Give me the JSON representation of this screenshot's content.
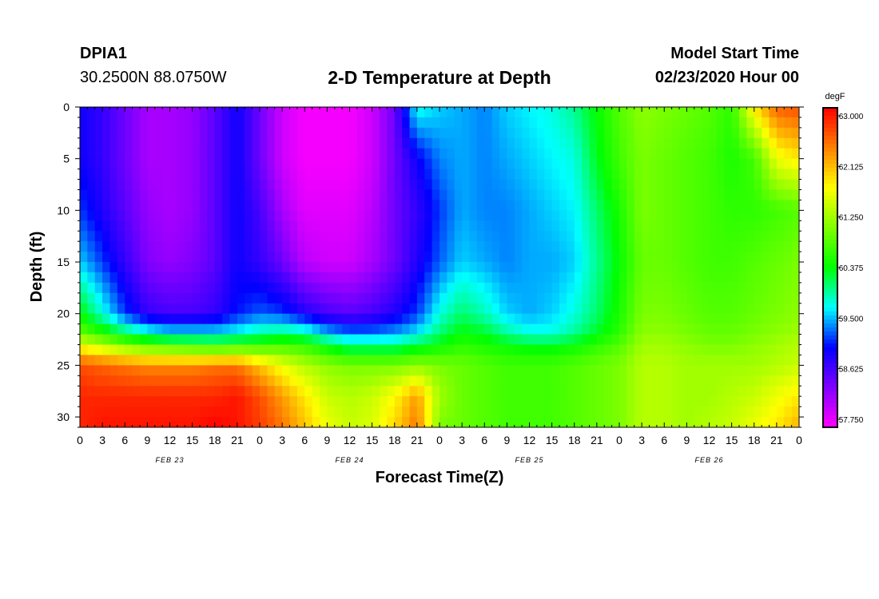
{
  "header": {
    "station": "DPIA1",
    "location": "30.2500N 88.0750W",
    "title": "2-D Temperature at Depth",
    "model_start_label": "Model Start Time",
    "model_start_value": "02/23/2020 Hour 00"
  },
  "colors": {
    "scale": [
      "#ff00ff",
      "#8000ff",
      "#0000ff",
      "#00ffff",
      "#00ff00",
      "#80ff00",
      "#ffff00",
      "#ff8000",
      "#ff0000"
    ]
  },
  "chart_data": {
    "type": "heatmap",
    "title": "2-D Temperature at Depth",
    "xlabel": "Forecast Time(Z)",
    "ylabel": "Depth (ft)",
    "units": "degF",
    "x_range_hours": [
      0,
      96
    ],
    "x_tick_step_hours": 3,
    "x_tick_labels": [
      "0",
      "3",
      "6",
      "9",
      "12",
      "15",
      "18",
      "21",
      "0",
      "3",
      "6",
      "9",
      "12",
      "15",
      "18",
      "21",
      "0",
      "3",
      "6",
      "9",
      "12",
      "15",
      "18",
      "21",
      "0",
      "3",
      "6",
      "9",
      "12",
      "15",
      "18",
      "21",
      "0"
    ],
    "date_labels": [
      {
        "hour": 12,
        "label": "FEB 23"
      },
      {
        "hour": 36,
        "label": "FEB 24"
      },
      {
        "hour": 60,
        "label": "FEB 25"
      },
      {
        "hour": 84,
        "label": "FEB 26"
      }
    ],
    "y_range_ft": [
      0,
      31
    ],
    "y_ticks": [
      0,
      5,
      10,
      15,
      20,
      25,
      30
    ],
    "colorbar": {
      "label": "degF",
      "min": 57.75,
      "max": 63.0,
      "tick_labels": [
        "63.000",
        "62.125",
        "61.250",
        "60.375",
        "59.500",
        "58.625",
        "57.750"
      ]
    },
    "grid_hours": [
      0,
      3,
      6,
      9,
      12,
      15,
      18,
      21,
      24,
      27,
      30,
      33,
      36,
      39,
      42,
      45,
      48,
      51,
      54,
      57,
      60,
      63,
      66,
      69,
      72,
      75,
      78,
      81,
      84,
      87,
      90,
      93,
      96
    ],
    "grid_depths_ft": [
      0,
      5,
      10,
      15,
      20,
      22,
      23,
      25,
      28,
      31
    ],
    "values_degF": [
      [
        59.0,
        58.8,
        58.5,
        58.2,
        58.2,
        58.3,
        58.6,
        59.0,
        58.5,
        58.0,
        57.8,
        57.8,
        57.8,
        58.0,
        58.5,
        59.8,
        59.6,
        59.5,
        59.4,
        59.6,
        59.7,
        59.8,
        60.0,
        60.4,
        60.8,
        61.1,
        61.0,
        60.9,
        60.8,
        60.6,
        61.8,
        62.5,
        62.6
      ],
      [
        59.0,
        58.8,
        58.5,
        58.2,
        58.2,
        58.3,
        58.6,
        59.0,
        58.5,
        58.0,
        57.8,
        57.8,
        57.8,
        58.0,
        58.5,
        59.0,
        59.4,
        59.5,
        59.4,
        59.5,
        59.6,
        59.7,
        59.8,
        60.3,
        60.7,
        61.0,
        60.9,
        60.8,
        60.7,
        60.5,
        60.7,
        61.6,
        61.8
      ],
      [
        59.2,
        58.9,
        58.6,
        58.3,
        58.2,
        58.3,
        58.6,
        59.0,
        58.7,
        58.2,
        57.9,
        57.9,
        57.9,
        58.1,
        58.5,
        58.8,
        59.2,
        59.5,
        59.4,
        59.4,
        59.5,
        59.6,
        59.7,
        60.1,
        60.5,
        61.0,
        60.9,
        60.8,
        60.7,
        60.6,
        60.6,
        60.7,
        60.8
      ],
      [
        59.6,
        59.2,
        58.8,
        58.4,
        58.3,
        58.4,
        58.6,
        59.0,
        58.8,
        58.5,
        58.1,
        58.0,
        58.0,
        58.2,
        58.5,
        58.9,
        59.3,
        59.6,
        59.5,
        59.4,
        59.5,
        59.5,
        59.6,
        60.0,
        60.4,
        60.9,
        60.9,
        60.8,
        60.7,
        60.7,
        60.8,
        60.9,
        61.0
      ],
      [
        60.4,
        59.8,
        59.2,
        58.8,
        58.7,
        58.7,
        58.8,
        59.1,
        59.3,
        59.2,
        58.9,
        58.7,
        58.6,
        58.7,
        58.9,
        59.2,
        59.8,
        60.1,
        59.9,
        59.6,
        59.5,
        59.6,
        59.8,
        60.1,
        60.5,
        61.0,
        61.0,
        60.9,
        60.8,
        60.8,
        60.9,
        61.0,
        61.1
      ],
      [
        60.9,
        60.6,
        60.2,
        59.9,
        59.7,
        59.7,
        59.7,
        59.8,
        60.0,
        60.1,
        60.0,
        59.6,
        59.4,
        59.4,
        59.5,
        59.7,
        60.1,
        60.4,
        60.3,
        60.0,
        59.8,
        59.8,
        60.0,
        60.3,
        60.6,
        61.1,
        61.1,
        61.0,
        60.9,
        60.9,
        61.0,
        61.1,
        61.2
      ],
      [
        61.6,
        61.3,
        61.0,
        60.8,
        60.7,
        60.6,
        60.5,
        60.6,
        60.6,
        60.7,
        60.6,
        60.3,
        60.0,
        60.0,
        60.0,
        60.2,
        60.4,
        60.6,
        60.5,
        60.4,
        60.3,
        60.3,
        60.4,
        60.6,
        60.8,
        61.2,
        61.2,
        61.1,
        61.0,
        61.0,
        61.1,
        61.2,
        61.3
      ],
      [
        62.6,
        62.5,
        62.4,
        62.3,
        62.3,
        62.3,
        62.4,
        62.4,
        62.0,
        61.6,
        61.3,
        61.1,
        61.0,
        61.0,
        61.0,
        61.1,
        61.0,
        60.9,
        60.8,
        60.7,
        60.7,
        60.7,
        60.8,
        60.9,
        61.0,
        61.3,
        61.3,
        61.2,
        61.2,
        61.2,
        61.2,
        61.3,
        61.4
      ],
      [
        62.8,
        62.8,
        62.8,
        62.8,
        62.8,
        62.8,
        62.8,
        62.9,
        62.6,
        62.2,
        61.8,
        61.4,
        61.3,
        61.4,
        61.7,
        62.2,
        61.2,
        60.9,
        60.8,
        60.7,
        60.7,
        60.7,
        60.8,
        60.9,
        61.0,
        61.3,
        61.3,
        61.2,
        61.2,
        61.3,
        61.4,
        61.6,
        61.8
      ],
      [
        62.8,
        62.9,
        62.9,
        62.9,
        62.9,
        62.9,
        63.0,
        62.9,
        62.7,
        62.4,
        62.0,
        61.6,
        61.4,
        61.5,
        61.9,
        62.4,
        61.0,
        60.9,
        60.8,
        60.7,
        60.7,
        60.7,
        60.8,
        60.9,
        61.0,
        61.3,
        61.3,
        61.2,
        61.3,
        61.4,
        61.6,
        61.8,
        62.1
      ]
    ]
  }
}
